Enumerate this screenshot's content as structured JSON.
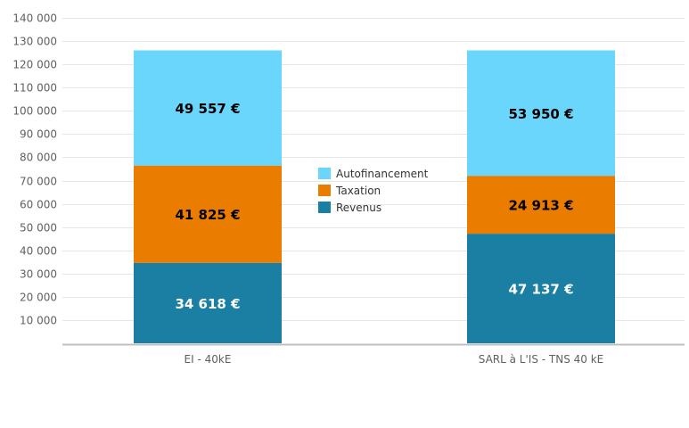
{
  "chart_data": {
    "type": "bar",
    "stacked": true,
    "categories": [
      "EI - 40kE",
      "SARL à L'IS - TNS 40 kE"
    ],
    "series": [
      {
        "name": "Revenus",
        "color": "#1a7fa3",
        "label_color": "#ffffff",
        "values": [
          34618,
          47137
        ],
        "labels": [
          "34 618 €",
          "47 137 €"
        ]
      },
      {
        "name": "Taxation",
        "color": "#ea7d00",
        "label_color": "#000000",
        "values": [
          41825,
          24913
        ],
        "labels": [
          "41 825 €",
          "24 913 €"
        ]
      },
      {
        "name": "Autofinancement",
        "color": "#6ad6fb",
        "label_color": "#000000",
        "values": [
          49557,
          53950
        ],
        "labels": [
          "49 557 €",
          "53 950 €"
        ]
      }
    ],
    "y_ticks": [
      10000,
      20000,
      30000,
      40000,
      50000,
      60000,
      70000,
      80000,
      90000,
      100000,
      110000,
      120000,
      130000,
      140000
    ],
    "y_tick_labels": [
      "10 000",
      "20 000",
      "30 000",
      "40 000",
      "50 000",
      "60 000",
      "70 000",
      "80 000",
      "90 000",
      "100 000",
      "110 000",
      "120 000",
      "130 000",
      "140 000"
    ],
    "ylim": [
      0,
      140000
    ],
    "grid": true,
    "legend_position": "center",
    "legend_order": [
      "Autofinancement",
      "Taxation",
      "Revenus"
    ],
    "title": "",
    "xlabel": "",
    "ylabel": ""
  }
}
